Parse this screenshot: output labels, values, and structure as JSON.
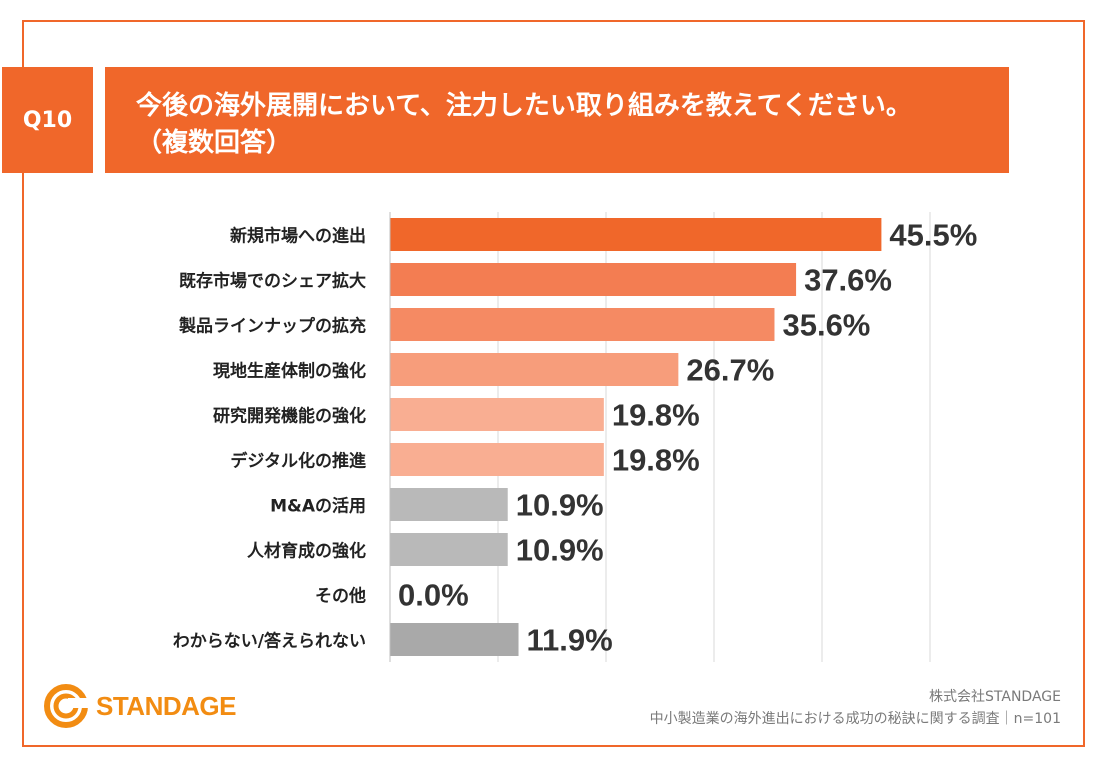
{
  "question": {
    "number": "Q10",
    "title_line1": "今後の海外展開において、注力したい取り組みを教えてください。",
    "title_line2": "（複数回答）"
  },
  "colors": {
    "accent": "#f0672a",
    "bar_palette": [
      "#f0672a",
      "#f37d52",
      "#f58a63",
      "#f79d7b",
      "#f9ae92",
      "#f9ae92",
      "#b9b9b9",
      "#b9b9b9",
      "#b9b9b9",
      "#a9a9a9"
    ],
    "value_text": "#333333",
    "grid": "#d9d9d9"
  },
  "chart_data": {
    "type": "bar",
    "orientation": "horizontal",
    "title": "今後の海外展開において、注力したい取り組みを教えてください。（複数回答）",
    "categories": [
      "新規市場への進出",
      "既存市場でのシェア拡大",
      "製品ラインナップの拡充",
      "現地生産体制の強化",
      "研究開発機能の強化",
      "デジタル化の推進",
      "M&Aの活用",
      "人材育成の強化",
      "その他",
      "わからない/答えられない"
    ],
    "values": [
      45.5,
      37.6,
      35.6,
      26.7,
      19.8,
      19.8,
      10.9,
      10.9,
      0.0,
      11.9
    ],
    "value_labels": [
      "45.5%",
      "37.6%",
      "35.6%",
      "26.7%",
      "19.8%",
      "19.8%",
      "10.9%",
      "10.9%",
      "0.0%",
      "11.9%"
    ],
    "xlim": [
      0,
      50
    ],
    "grid": true,
    "xlabel": "",
    "ylabel": ""
  },
  "footer": {
    "logo_text": "STANDAGE",
    "company": "株式会社STANDAGE",
    "survey": "中小製造業の海外進出における成功の秘訣に関する調査｜n=101"
  }
}
